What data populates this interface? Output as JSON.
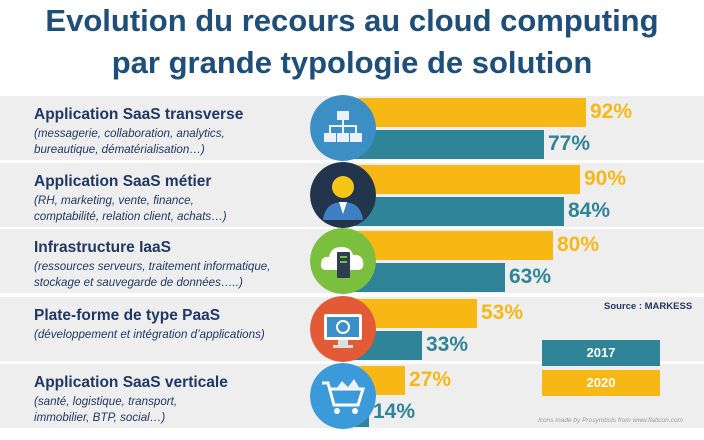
{
  "title_line1": "Evolution du recours au cloud computing",
  "title_line2": "par grande typologie de solution",
  "colors": {
    "year2020": "#f7b816",
    "year2017": "#2f8497",
    "title": "#1f4e79"
  },
  "chart_data": {
    "type": "bar",
    "orientation": "horizontal",
    "categories": [
      "Application SaaS transverse",
      "Application SaaS métier",
      "Infrastructure IaaS",
      "Plate-forme de type PaaS",
      "Application SaaS verticale"
    ],
    "series": [
      {
        "name": "2020",
        "values": [
          92,
          90,
          80,
          53,
          27
        ],
        "labels": [
          "92%",
          "90%",
          "80%",
          "53%",
          "27%"
        ]
      },
      {
        "name": "2017",
        "values": [
          77,
          84,
          63,
          33,
          14
        ],
        "labels": [
          "77%",
          "84%",
          "63%",
          "33%",
          "14%"
        ]
      }
    ],
    "xlim": [
      0,
      100
    ],
    "legend_position": "bottom-right"
  },
  "rows": [
    {
      "name": "Application SaaS transverse",
      "desc1": "(messagerie, collaboration, analytics,",
      "desc2": "bureautique, dématérialisation…)",
      "icon": "network-icon"
    },
    {
      "name": "Application SaaS métier",
      "desc1": "(RH, marketing, vente, finance,",
      "desc2": "comptabilité, relation client, achats…)",
      "icon": "business-person-icon"
    },
    {
      "name": "Infrastructure IaaS",
      "desc1": "(ressources serveurs, traitement informatique,",
      "desc2": "stockage et sauvegarde de données…..)",
      "icon": "cloud-server-icon"
    },
    {
      "name": "Plate-forme de type PaaS",
      "desc1": "(développement et intégration d’applications)",
      "desc2": "",
      "icon": "monitor-icon"
    },
    {
      "name": "Application SaaS verticale",
      "desc1": "(santé, logistique, transport,",
      "desc2": "immobilier, BTP, social…)",
      "icon": "shopping-cart-icon"
    }
  ],
  "legend": {
    "label2017": "2017",
    "label2020": "2020"
  },
  "source": "Source : MARKESS",
  "credit": "Icons made by Prosymbols from www.flaticon.com"
}
